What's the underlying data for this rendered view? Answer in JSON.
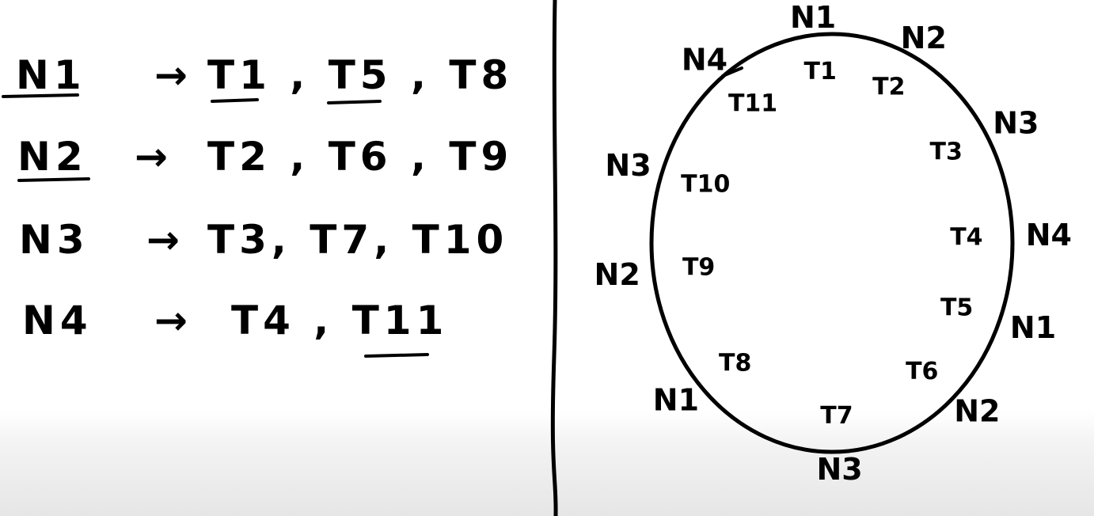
{
  "mapping": {
    "arrow": "→",
    "rows": [
      {
        "node": "N1",
        "tokens": "T1 , T5 , T8"
      },
      {
        "node": "N2",
        "tokens": "T2 , T6 , T9"
      },
      {
        "node": "N3",
        "tokens": "T3, T7, T10"
      },
      {
        "node": "N4",
        "tokens": "T4 , T11"
      }
    ]
  },
  "ring": {
    "tokens": [
      "T1",
      "T2",
      "T3",
      "T4",
      "T5",
      "T6",
      "T7",
      "T8",
      "T9",
      "T10",
      "T11"
    ],
    "owners": [
      "N1",
      "N2",
      "N3",
      "N4",
      "N1",
      "N2",
      "N3",
      "N1",
      "N2",
      "N3",
      "N4"
    ]
  }
}
